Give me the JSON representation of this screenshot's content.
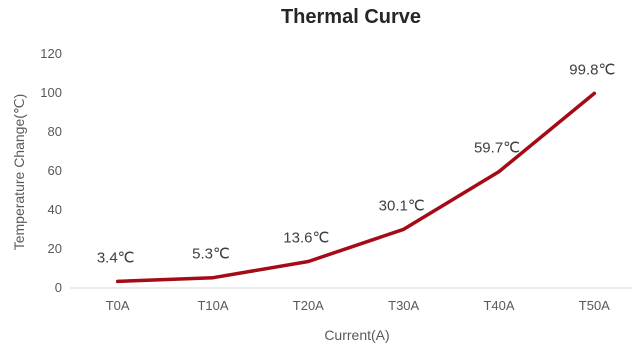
{
  "chart_data": {
    "type": "line",
    "title": "Thermal Curve",
    "xlabel": "Current(A)",
    "ylabel": "Temperature Change(℃)",
    "categories": [
      "T0A",
      "T10A",
      "T20A",
      "T30A",
      "T40A",
      "T50A"
    ],
    "series": [
      {
        "values": [
          3.4,
          5.3,
          13.6,
          30.1,
          59.7,
          99.8
        ],
        "data_labels": [
          "3.4℃",
          "5.3℃",
          "13.6℃",
          "30.1℃",
          "59.7℃",
          "99.8℃"
        ],
        "color": "#A50B16"
      }
    ],
    "ylim": [
      0,
      120
    ],
    "yticks": [
      0,
      20,
      40,
      60,
      80,
      100,
      120
    ],
    "grid": false,
    "legend": "none"
  }
}
